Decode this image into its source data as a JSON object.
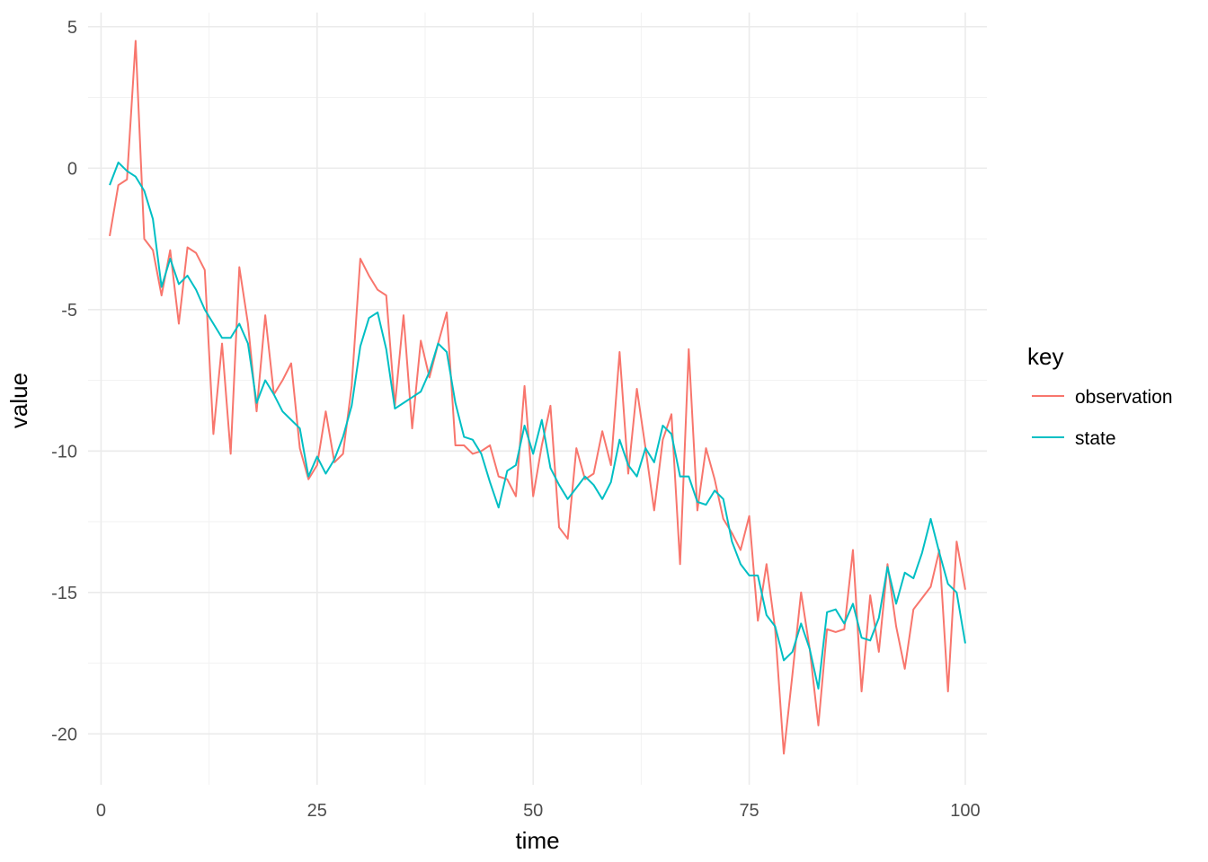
{
  "chart_data": {
    "type": "line",
    "xlabel": "time",
    "ylabel": "value",
    "xlim": [
      -1.5,
      102.5
    ],
    "ylim": [
      -21.8,
      5.5
    ],
    "x_ticks": [
      0,
      25,
      50,
      75,
      100
    ],
    "y_ticks": [
      5,
      0,
      -5,
      -10,
      -15,
      -20
    ],
    "x_tick_labels": [
      "0",
      "25",
      "50",
      "75",
      "100"
    ],
    "y_tick_labels": [
      "5",
      "0",
      "-5",
      "-10",
      "-15",
      "-20"
    ],
    "grid": true,
    "legend": {
      "title": "key",
      "position": "right"
    },
    "x": [
      1,
      2,
      3,
      4,
      5,
      6,
      7,
      8,
      9,
      10,
      11,
      12,
      13,
      14,
      15,
      16,
      17,
      18,
      19,
      20,
      21,
      22,
      23,
      24,
      25,
      26,
      27,
      28,
      29,
      30,
      31,
      32,
      33,
      34,
      35,
      36,
      37,
      38,
      39,
      40,
      41,
      42,
      43,
      44,
      45,
      46,
      47,
      48,
      49,
      50,
      51,
      52,
      53,
      54,
      55,
      56,
      57,
      58,
      59,
      60,
      61,
      62,
      63,
      64,
      65,
      66,
      67,
      68,
      69,
      70,
      71,
      72,
      73,
      74,
      75,
      76,
      77,
      78,
      79,
      80,
      81,
      82,
      83,
      84,
      85,
      86,
      87,
      88,
      89,
      90,
      91,
      92,
      93,
      94,
      95,
      96,
      97,
      98,
      99,
      100
    ],
    "series": [
      {
        "name": "observation",
        "color": "#F8766D",
        "values": [
          -2.4,
          -0.6,
          -0.4,
          4.5,
          -2.5,
          -2.9,
          -4.5,
          -2.9,
          -5.5,
          -2.8,
          -3.0,
          -3.6,
          -9.4,
          -6.2,
          -10.1,
          -3.5,
          -5.5,
          -8.6,
          -5.2,
          -8.0,
          -7.5,
          -6.9,
          -9.9,
          -11.0,
          -10.5,
          -8.6,
          -10.4,
          -10.1,
          -7.7,
          -3.2,
          -3.8,
          -4.3,
          -4.5,
          -8.4,
          -5.2,
          -9.2,
          -6.1,
          -7.4,
          -6.2,
          -5.1,
          -9.8,
          -9.8,
          -10.1,
          -10.0,
          -9.8,
          -10.9,
          -11.0,
          -11.6,
          -7.7,
          -11.6,
          -9.8,
          -8.4,
          -12.7,
          -13.1,
          -9.9,
          -11.0,
          -10.8,
          -9.3,
          -10.5,
          -6.5,
          -10.8,
          -7.8,
          -9.9,
          -12.1,
          -9.6,
          -8.7,
          -14.0,
          -6.4,
          -12.1,
          -9.9,
          -11.0,
          -12.4,
          -12.9,
          -13.5,
          -12.3,
          -16.0,
          -14.0,
          -16.3,
          -20.7,
          -17.9,
          -15.0,
          -17.0,
          -19.7,
          -16.3,
          -16.4,
          -16.3,
          -13.5,
          -18.5,
          -15.1,
          -17.1,
          -14.0,
          -16.2,
          -17.7,
          -15.6,
          -15.2,
          -14.8,
          -13.5,
          -18.5,
          -13.2,
          -14.9
        ]
      },
      {
        "name": "state",
        "color": "#00BFC4",
        "values": [
          -0.6,
          0.2,
          -0.1,
          -0.3,
          -0.8,
          -1.8,
          -4.2,
          -3.2,
          -4.1,
          -3.8,
          -4.3,
          -5.0,
          -5.5,
          -6.0,
          -6.0,
          -5.5,
          -6.2,
          -8.3,
          -7.5,
          -8.0,
          -8.6,
          -8.9,
          -9.2,
          -10.9,
          -10.2,
          -10.8,
          -10.3,
          -9.5,
          -8.4,
          -6.3,
          -5.3,
          -5.1,
          -6.4,
          -8.5,
          -8.3,
          -8.1,
          -7.9,
          -7.2,
          -6.2,
          -6.5,
          -8.3,
          -9.5,
          -9.6,
          -10.1,
          -11.1,
          -12.0,
          -10.7,
          -10.5,
          -9.1,
          -10.1,
          -8.9,
          -10.6,
          -11.2,
          -11.7,
          -11.3,
          -10.9,
          -11.2,
          -11.7,
          -11.1,
          -9.6,
          -10.5,
          -10.9,
          -9.9,
          -10.4,
          -9.1,
          -9.4,
          -10.9,
          -10.9,
          -11.8,
          -11.9,
          -11.4,
          -11.7,
          -13.2,
          -14.0,
          -14.4,
          -14.4,
          -15.8,
          -16.2,
          -17.4,
          -17.1,
          -16.1,
          -17.0,
          -18.4,
          -15.7,
          -15.6,
          -16.1,
          -15.4,
          -16.6,
          -16.7,
          -15.9,
          -14.1,
          -15.4,
          -14.3,
          -14.5,
          -13.6,
          -12.4,
          -13.6,
          -14.7,
          -15.0,
          -16.8
        ]
      }
    ]
  }
}
